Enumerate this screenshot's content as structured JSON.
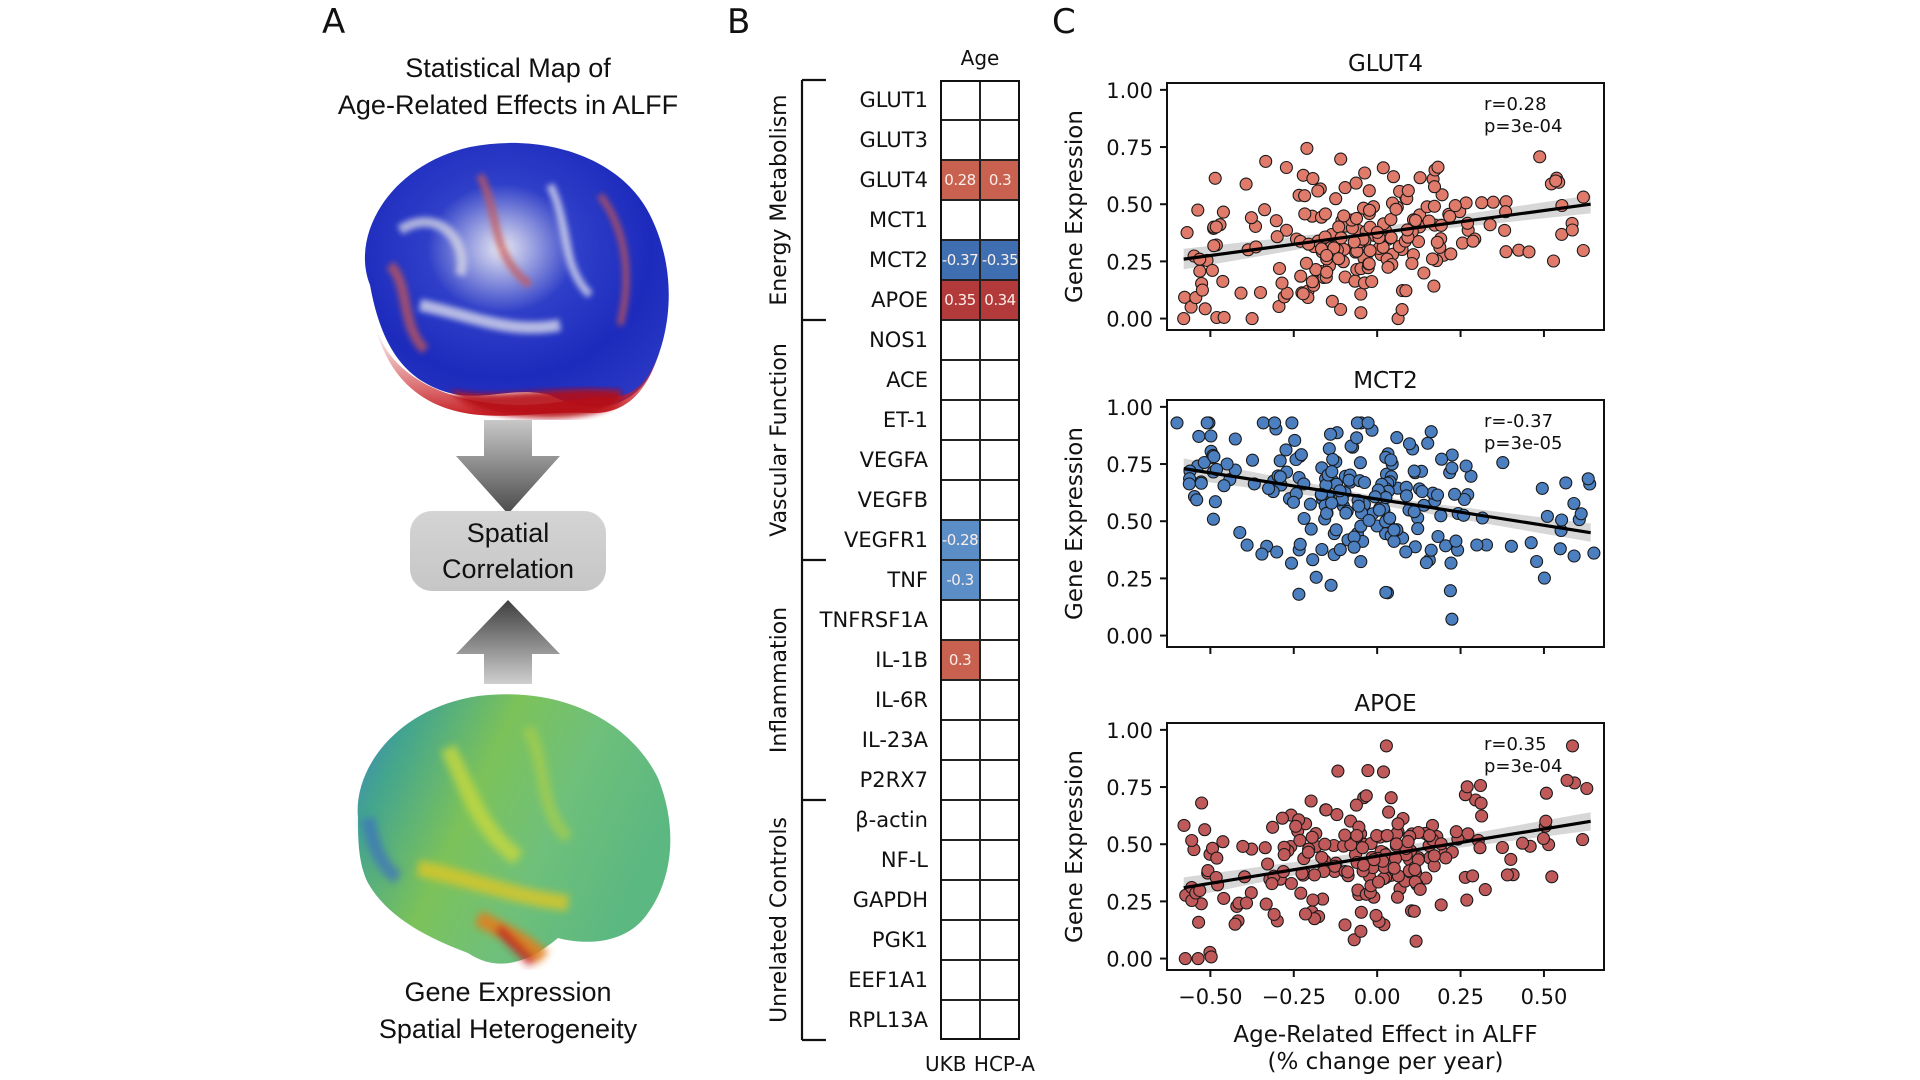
{
  "panel_a": {
    "letter": "A",
    "title_line1": "Statistical Map of",
    "title_line2": "Age-Related Effects in ALFF",
    "box_line1": "Spatial",
    "box_line2": "Correlation",
    "subtitle_line1": "Gene Expression",
    "subtitle_line2": "Spatial Heterogeneity",
    "top_brain": "cortical surface map, red/white/blue",
    "bottom_brain": "cortical surface map, blue/green/yellow/red"
  },
  "panel_b": {
    "letter": "B",
    "column_title": "Age",
    "columns": [
      "UKB",
      "HCP-A"
    ],
    "groups": [
      {
        "name": "Energy Metabolism",
        "start": 0,
        "count": 6
      },
      {
        "name": "Vascular Function",
        "start": 6,
        "count": 6
      },
      {
        "name": "Inflammation",
        "start": 12,
        "count": 6
      },
      {
        "name": "Unrelated Controls",
        "start": 18,
        "count": 6
      }
    ],
    "rows": [
      {
        "gene": "GLUT1",
        "values": [
          null,
          null
        ]
      },
      {
        "gene": "GLUT3",
        "values": [
          null,
          null
        ]
      },
      {
        "gene": "GLUT4",
        "values": [
          0.28,
          0.3
        ]
      },
      {
        "gene": "MCT1",
        "values": [
          null,
          null
        ]
      },
      {
        "gene": "MCT2",
        "values": [
          -0.37,
          -0.35
        ]
      },
      {
        "gene": "APOE",
        "values": [
          0.35,
          0.34
        ]
      },
      {
        "gene": "NOS1",
        "values": [
          null,
          null
        ]
      },
      {
        "gene": "ACE",
        "values": [
          null,
          null
        ]
      },
      {
        "gene": "ET-1",
        "values": [
          null,
          null
        ]
      },
      {
        "gene": "VEGFA",
        "values": [
          null,
          null
        ]
      },
      {
        "gene": "VEGFB",
        "values": [
          null,
          null
        ]
      },
      {
        "gene": "VEGFR1",
        "values": [
          -0.28,
          null
        ]
      },
      {
        "gene": "TNF",
        "values": [
          -0.3,
          null
        ]
      },
      {
        "gene": "TNFRSF1A",
        "values": [
          null,
          null
        ]
      },
      {
        "gene": "IL-1B",
        "values": [
          0.3,
          null
        ]
      },
      {
        "gene": "IL-6R",
        "values": [
          null,
          null
        ]
      },
      {
        "gene": "IL-23A",
        "values": [
          null,
          null
        ]
      },
      {
        "gene": "P2RX7",
        "values": [
          null,
          null
        ]
      },
      {
        "gene": "β-actin",
        "values": [
          null,
          null
        ]
      },
      {
        "gene": "NF-L",
        "values": [
          null,
          null
        ]
      },
      {
        "gene": "GAPDH",
        "values": [
          null,
          null
        ]
      },
      {
        "gene": "PGK1",
        "values": [
          null,
          null
        ]
      },
      {
        "gene": "EEF1A1",
        "values": [
          null,
          null
        ]
      },
      {
        "gene": "RPL13A",
        "values": [
          null,
          null
        ]
      }
    ],
    "colors": {
      "pos_light": "#c8614f",
      "pos_dark": "#b23a3a",
      "neg_light": "#5b8ec7",
      "neg_dark": "#3f6fb0"
    }
  },
  "panel_c": {
    "letter": "C",
    "xlabel_line1": "Age-Related Effect in ALFF",
    "xlabel_line2": "(% change per year)"
  },
  "chart_data": [
    {
      "type": "scatter",
      "title": "GLUT4",
      "xlabel": "Age-Related Effect in ALFF (% change per year)",
      "ylabel": "Gene Expression",
      "xlim": [
        -0.63,
        0.68
      ],
      "ylim": [
        -0.05,
        1.03
      ],
      "xticks": [
        -0.5,
        -0.25,
        0.0,
        0.25,
        0.5
      ],
      "yticks": [
        0.0,
        0.25,
        0.5,
        0.75,
        1.0
      ],
      "ytick_labels": [
        "0.00",
        "0.25",
        "0.50",
        "0.75",
        "1.00"
      ],
      "xtick_labels": [
        "−0.50",
        "−0.25",
        "0.00",
        "0.25",
        "0.50"
      ],
      "show_xtick_labels": false,
      "annotation": [
        "r=0.28",
        "p=3e-04"
      ],
      "point_color": "#e07b6b",
      "fit": {
        "x0": -0.58,
        "y0": 0.26,
        "x1": 0.64,
        "y1": 0.5
      },
      "n_points": 230,
      "seed": 11
    },
    {
      "type": "scatter",
      "title": "MCT2",
      "xlabel": "Age-Related Effect in ALFF (% change per year)",
      "ylabel": "Gene Expression",
      "xlim": [
        -0.63,
        0.68
      ],
      "ylim": [
        -0.05,
        1.03
      ],
      "xticks": [
        -0.5,
        -0.25,
        0.0,
        0.25,
        0.5
      ],
      "yticks": [
        0.0,
        0.25,
        0.5,
        0.75,
        1.0
      ],
      "ytick_labels": [
        "0.00",
        "0.25",
        "0.50",
        "0.75",
        "1.00"
      ],
      "xtick_labels": [
        "−0.50",
        "−0.25",
        "0.00",
        "0.25",
        "0.50"
      ],
      "show_xtick_labels": false,
      "annotation": [
        "r=-0.37",
        "p=3e-05"
      ],
      "point_color": "#4b7fc0",
      "fit": {
        "x0": -0.58,
        "y0": 0.73,
        "x1": 0.64,
        "y1": 0.45
      },
      "n_points": 230,
      "seed": 23
    },
    {
      "type": "scatter",
      "title": "APOE",
      "xlabel": "Age-Related Effect in ALFF (% change per year)",
      "ylabel": "Gene Expression",
      "xlim": [
        -0.63,
        0.68
      ],
      "ylim": [
        -0.05,
        1.03
      ],
      "xticks": [
        -0.5,
        -0.25,
        0.0,
        0.25,
        0.5
      ],
      "yticks": [
        0.0,
        0.25,
        0.5,
        0.75,
        1.0
      ],
      "ytick_labels": [
        "0.00",
        "0.25",
        "0.50",
        "0.75",
        "1.00"
      ],
      "xtick_labels": [
        "−0.50",
        "−0.25",
        "0.00",
        "0.25",
        "0.50"
      ],
      "show_xtick_labels": true,
      "annotation": [
        "r=0.35",
        "p=3e-04"
      ],
      "point_color": "#c0595a",
      "fit": {
        "x0": -0.58,
        "y0": 0.31,
        "x1": 0.64,
        "y1": 0.6
      },
      "n_points": 230,
      "seed": 37
    }
  ]
}
